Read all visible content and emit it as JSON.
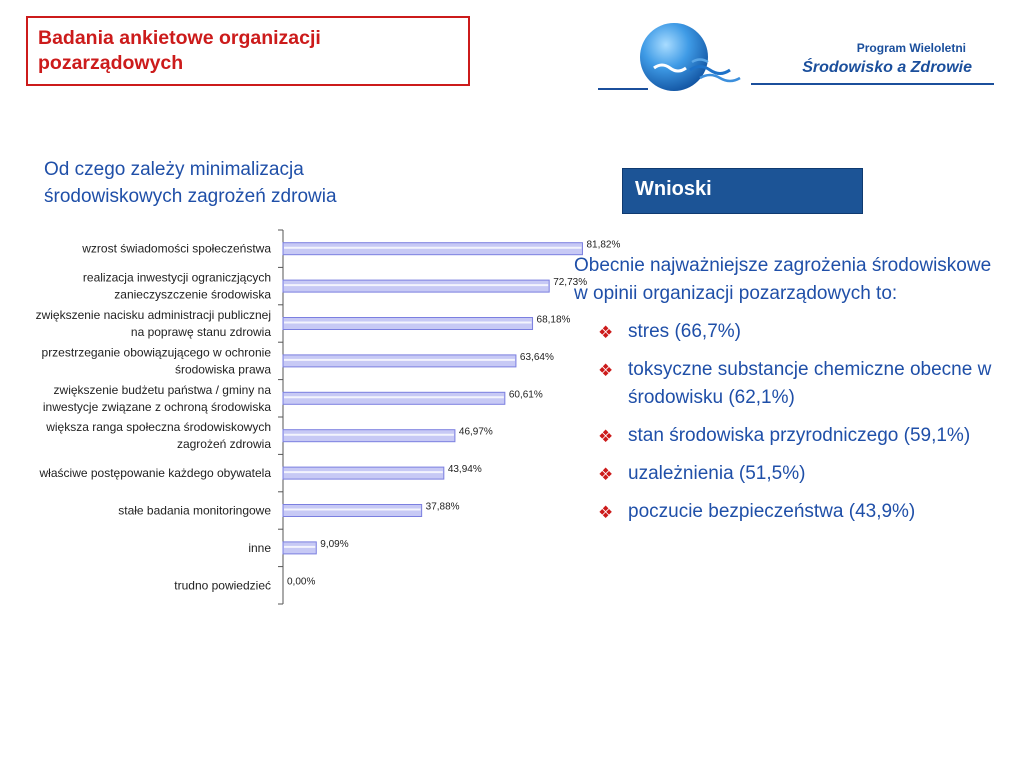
{
  "header": {
    "title": "Badania ankietowe organizacji pozarządowych",
    "logo_line1": "Program Wieloletni",
    "logo_line2": "Środowisko a Zdrowie"
  },
  "section_heading": "Od czego zależy minimalizacja środowiskowych zagrożeń zdrowia",
  "conclusions": {
    "heading": "Wnioski",
    "intro": "Obecnie najważniejsze zagrożenia środowiskowe w opinii organizacji pozarządowych to:",
    "items": [
      "stres (66,7%)",
      "toksyczne substancje chemiczne obecne w środowisku (62,1%)",
      "stan środowiska przyrodniczego (59,1%)",
      "uzależnienia (51,5%)",
      "poczucie bezpieczeństwa (43,9%)"
    ]
  },
  "colors": {
    "accent_red": "#cc1b1b",
    "heading_blue": "#1f4fa8",
    "box_blue": "#1c5496",
    "bar_fill": "#c7c9f5",
    "bar_edge": "#7b7fe0"
  },
  "chart_data": {
    "type": "bar",
    "orientation": "horizontal",
    "categories": [
      [
        "wzrost świadomości społeczeństwa"
      ],
      [
        "realizacja inwestycji ograniczjących",
        "zanieczyszczenie środowiska"
      ],
      [
        "zwiększenie nacisku administracji publicznej",
        "na poprawę stanu zdrowia"
      ],
      [
        "przestrzeganie obowiązującego w ochronie",
        "środowiska prawa"
      ],
      [
        "zwiększenie budżetu państwa / gminy na",
        "inwestycje związane z ochroną środowiska"
      ],
      [
        "większa ranga społeczna środowiskowych",
        "zagrożeń zdrowia"
      ],
      [
        "właściwe postępowanie każdego obywatela"
      ],
      [
        "stałe badania monitoringowe"
      ],
      [
        "inne"
      ],
      [
        "trudno powiedzieć"
      ]
    ],
    "values": [
      81.82,
      72.73,
      68.18,
      63.64,
      60.61,
      46.97,
      43.94,
      37.88,
      9.09,
      0.0
    ],
    "data_labels": [
      "81,82%",
      "72,73%",
      "68,18%",
      "63,64%",
      "60,61%",
      "46,97%",
      "43,94%",
      "37,88%",
      "9,09%",
      "0,00%"
    ],
    "xlim": [
      0,
      100
    ],
    "grid": false,
    "legend": "none"
  }
}
